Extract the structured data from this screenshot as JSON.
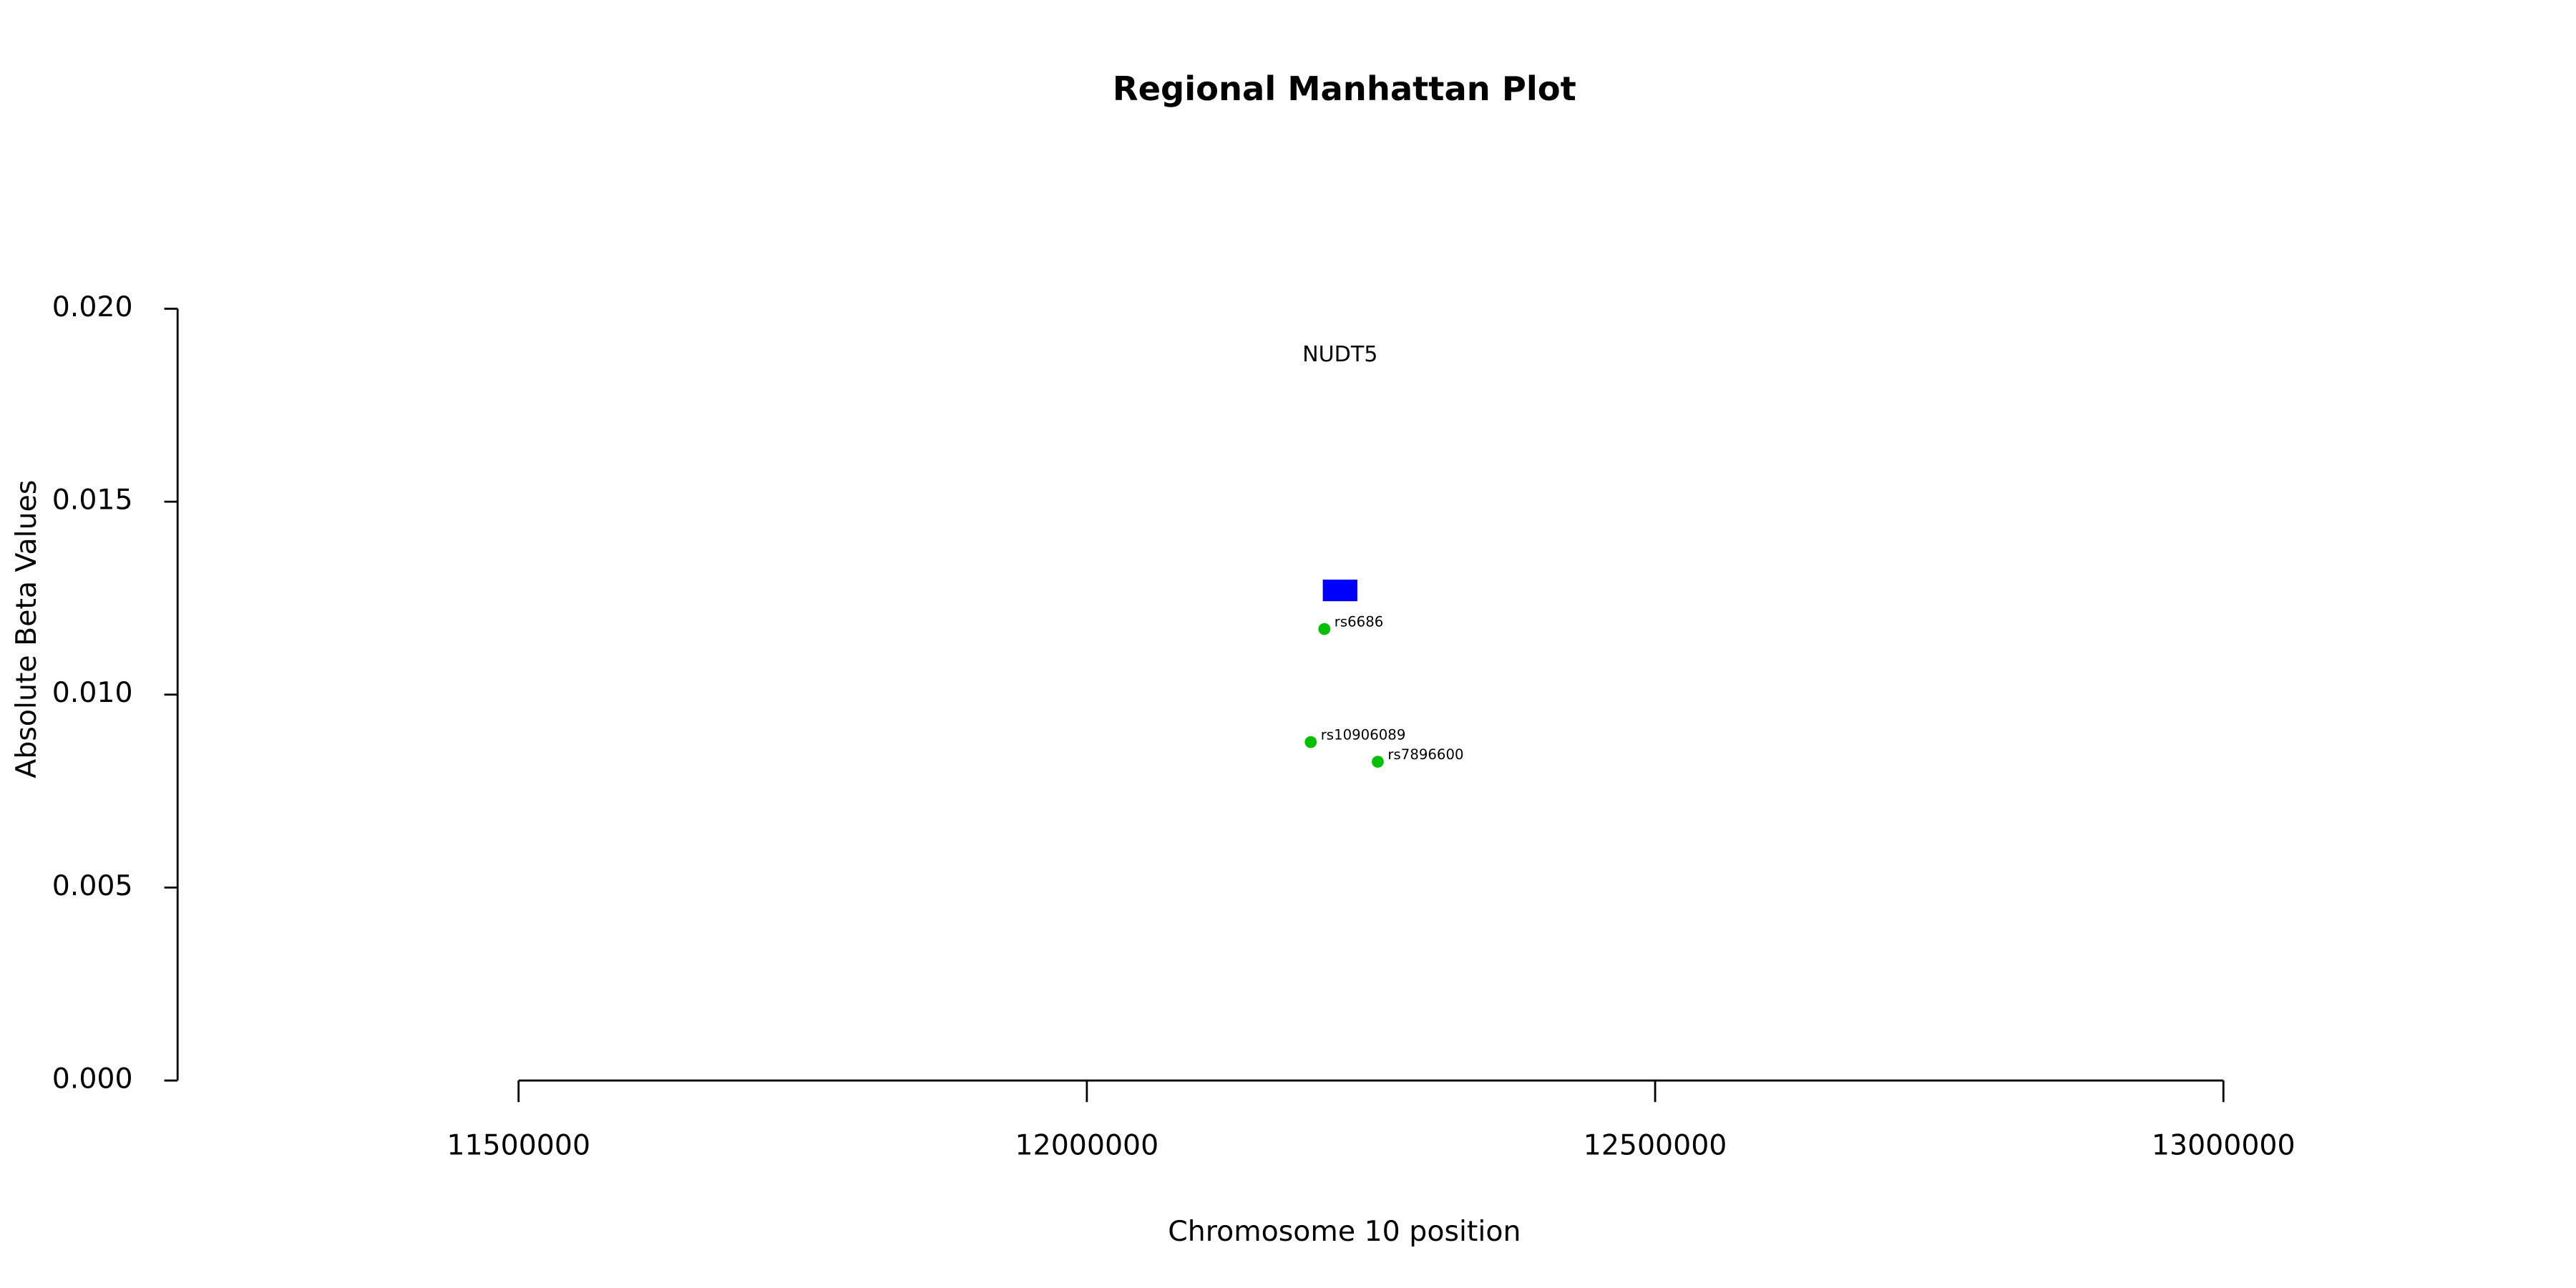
{
  "chart_data": {
    "type": "scatter",
    "title": "Regional Manhattan Plot",
    "x_label": "Chromosome 10 position",
    "y_label": "Absolute Beta Values",
    "x": [
      12209000,
      12197000,
      12256000
    ],
    "values": [
      0.0117,
      0.00877,
      0.00826
    ],
    "labels": [
      "rs6686",
      "rs10906089",
      "rs7896600"
    ],
    "color": "#00c000",
    "genes": [
      {
        "name": "NUDT5",
        "start": 12207600,
        "end": 12238000,
        "y": 0.0127,
        "color": "#0000ff"
      }
    ],
    "xlim": [
      11200000,
      13300000
    ],
    "xticks": [
      11500000,
      12000000,
      12500000,
      13000000
    ],
    "ylim": [
      0,
      0.02
    ],
    "yticks": [
      {
        "value": 0,
        "label": "0.000"
      },
      {
        "value": 0.005,
        "label": "0.005"
      },
      {
        "value": 0.01,
        "label": "0.010"
      },
      {
        "value": 0.015,
        "label": "0.015"
      },
      {
        "value": 0.02,
        "label": "0.020"
      }
    ]
  }
}
